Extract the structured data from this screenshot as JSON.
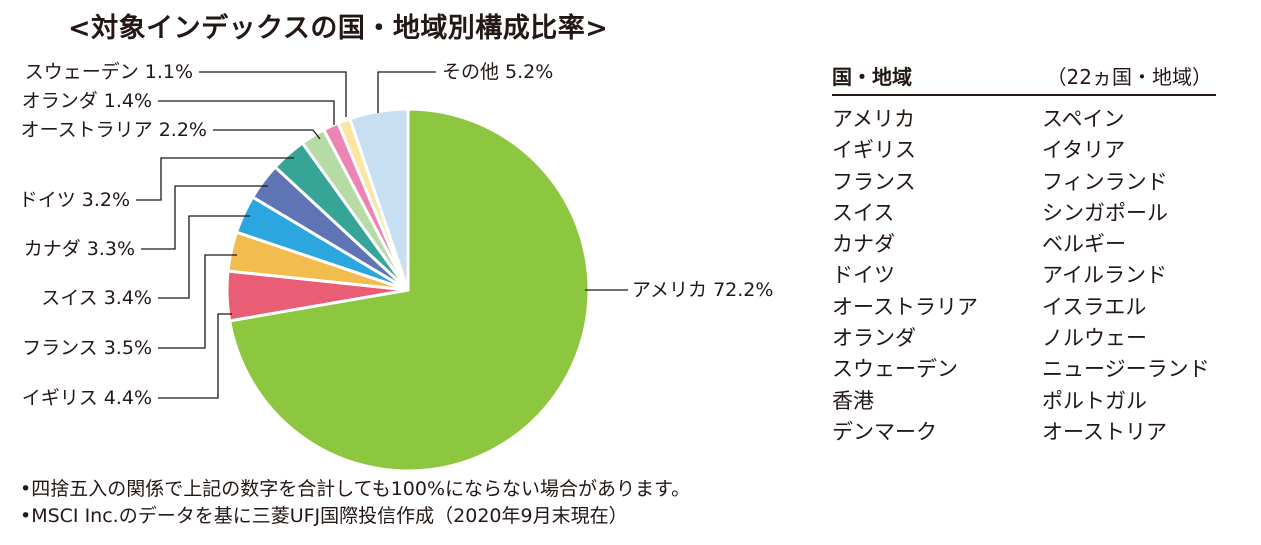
{
  "title": "<対象インデックスの国・地域別構成比率>",
  "chart_data": {
    "type": "pie",
    "slices": [
      {
        "label": "アメリカ",
        "value": 72.2,
        "display": "アメリカ 72.2%",
        "color": "#8dc63f"
      },
      {
        "label": "イギリス",
        "value": 4.4,
        "display": "イギリス 4.4%",
        "color": "#e95d75"
      },
      {
        "label": "フランス",
        "value": 3.5,
        "display": "フランス 3.5%",
        "color": "#f0bd4e"
      },
      {
        "label": "スイス",
        "value": 3.4,
        "display": "スイス 3.4%",
        "color": "#2ba6de"
      },
      {
        "label": "カナダ",
        "value": 3.3,
        "display": "カナダ 3.3%",
        "color": "#5e74b4"
      },
      {
        "label": "ドイツ",
        "value": 3.2,
        "display": "ドイツ 3.2%",
        "color": "#36a597"
      },
      {
        "label": "オーストラリア",
        "value": 2.2,
        "display": "オーストラリア 2.2%",
        "color": "#b7dba5"
      },
      {
        "label": "オランダ",
        "value": 1.4,
        "display": "オランダ 1.4%",
        "color": "#ec85b4"
      },
      {
        "label": "スウェーデン",
        "value": 1.1,
        "display": "スウェーデン 1.1%",
        "color": "#fde4a1"
      },
      {
        "label": "その他",
        "value": 5.2,
        "display": "その他 5.2%",
        "color": "#c6dff3"
      }
    ]
  },
  "legend": {
    "header_title": "国・地域",
    "header_count": "（22ヵ国・地域）",
    "col1": [
      "アメリカ",
      "イギリス",
      "フランス",
      "スイス",
      "カナダ",
      "ドイツ",
      "オーストラリア",
      "オランダ",
      "スウェーデン",
      "香港",
      "デンマーク"
    ],
    "col2": [
      "スペイン",
      "イタリア",
      "フィンランド",
      "シンガポール",
      "ベルギー",
      "アイルランド",
      "イスラエル",
      "ノルウェー",
      "ニュージーランド",
      "ポルトガル",
      "オーストリア"
    ]
  },
  "notes": [
    "•四捨五入の関係で上記の数字を合計しても100%にならない場合があります。",
    "•MSCI Inc.のデータを基に三菱UFJ国際投信作成（2020年9月末現在）"
  ]
}
